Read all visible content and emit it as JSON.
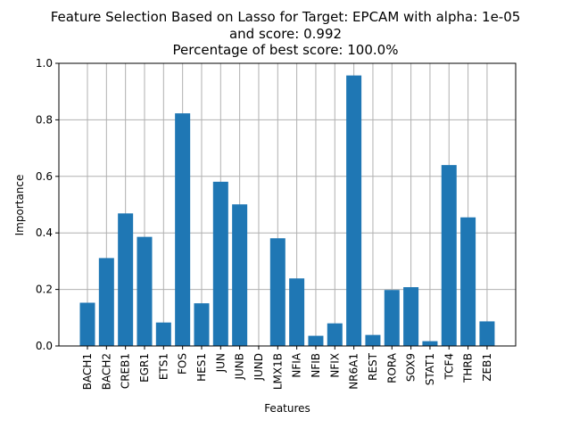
{
  "chart_data": {
    "type": "bar",
    "title_lines": [
      "Feature Selection Based on Lasso for Target: EPCAM with alpha: 1e-05",
      "and score: 0.992",
      " Percentage of best score: 100.0%"
    ],
    "xlabel": "Features",
    "ylabel": "Importance",
    "categories": [
      "BACH1",
      "BACH2",
      "CREB1",
      "EGR1",
      "ETS1",
      "FOS",
      "HES1",
      "JUN",
      "JUNB",
      "JUND",
      "LMX1B",
      "NFIA",
      "NFIB",
      "NFIX",
      "NR6A1",
      "REST",
      "RORA",
      "SOX9",
      "STAT1",
      "TCF4",
      "THRB",
      "ZEB1"
    ],
    "values": [
      0.153,
      0.311,
      0.469,
      0.386,
      0.083,
      0.823,
      0.151,
      0.581,
      0.501,
      0.0,
      0.381,
      0.239,
      0.036,
      0.08,
      0.957,
      0.039,
      0.198,
      0.208,
      0.017,
      0.64,
      0.455,
      0.087
    ],
    "ylim": [
      0,
      1.0
    ],
    "yticks": [
      "0.0",
      "0.2",
      "0.4",
      "0.6",
      "0.8",
      "1.0"
    ],
    "grid": true,
    "bar_color": "#1f77b4"
  }
}
